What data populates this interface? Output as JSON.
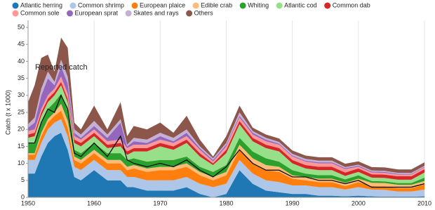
{
  "chart_data": {
    "type": "stacked-area",
    "y_label": "Catch (t x 1000)",
    "x": [
      1950,
      1951,
      1952,
      1953,
      1954,
      1955,
      1956,
      1957,
      1958,
      1960,
      1962,
      1964,
      1965,
      1966,
      1968,
      1970,
      1972,
      1974,
      1976,
      1978,
      1980,
      1982,
      1984,
      1986,
      1988,
      1990,
      1992,
      1994,
      1996,
      1998,
      2000,
      2002,
      2004,
      2006,
      2008,
      2010
    ],
    "xlim": [
      1950,
      2010
    ],
    "xticks": [
      1950,
      1960,
      1970,
      1980,
      1990,
      2000,
      2010
    ],
    "ylim": [
      0,
      50
    ],
    "yticks": [
      0,
      5,
      10,
      15,
      20,
      25,
      30,
      35,
      40,
      45,
      50
    ],
    "grid": "x",
    "series": [
      {
        "name": "Atlantic herring",
        "color": "#1f77b4",
        "values": [
          7,
          7,
          12,
          16,
          18,
          19,
          14,
          6,
          5,
          8,
          5,
          5,
          3,
          3,
          2,
          2,
          2,
          3,
          1,
          0,
          1,
          8,
          4,
          2,
          1.5,
          1,
          1,
          0.5,
          0.5,
          0.3,
          0.5,
          0.3,
          0.2,
          0.2,
          0.2,
          0.3
        ]
      },
      {
        "name": "Common shrimp",
        "color": "#aec7e8",
        "values": [
          4,
          4,
          4,
          4,
          4,
          4,
          4,
          3,
          3,
          3,
          3,
          3,
          3,
          3,
          3,
          3,
          3,
          3,
          3,
          3,
          3,
          3,
          3,
          3,
          3,
          2.5,
          2.5,
          2.5,
          2.5,
          2,
          2.5,
          2,
          2,
          1.5,
          1.5,
          2
        ]
      },
      {
        "name": "European plaice",
        "color": "#ff7f0e",
        "values": [
          1.5,
          1.5,
          2,
          2,
          2,
          2.5,
          2.5,
          2,
          2,
          2,
          2,
          2,
          2,
          2.5,
          2.5,
          3,
          3,
          3,
          2.5,
          2,
          2.5,
          3,
          3,
          3,
          3,
          2,
          1.5,
          1.5,
          1.5,
          1,
          1.5,
          1,
          1,
          1,
          1,
          1.5
        ]
      },
      {
        "name": "Edible crab",
        "color": "#ffbb78",
        "values": [
          0.5,
          0.5,
          1,
          1,
          1,
          2,
          2,
          1,
          1,
          1,
          1,
          1,
          1,
          1,
          1,
          1,
          1,
          1,
          1,
          1,
          1,
          1.5,
          1.5,
          1.5,
          1.5,
          1,
          1,
          1,
          1,
          1,
          1,
          1,
          1,
          1,
          1,
          1
        ]
      },
      {
        "name": "Whiting",
        "color": "#2ca02c",
        "values": [
          3,
          3,
          3,
          3,
          3,
          3,
          3,
          2,
          2,
          2,
          2,
          2,
          2,
          2,
          2,
          2,
          2,
          2,
          1.5,
          1.5,
          2,
          2,
          2,
          2,
          1.5,
          1.5,
          1,
          1,
          1,
          1,
          1,
          0.5,
          0.5,
          0.5,
          0.5,
          1
        ]
      },
      {
        "name": "Atlantic cod",
        "color": "#98df8a",
        "values": [
          1.5,
          2,
          2,
          2,
          2,
          2.5,
          2.5,
          2,
          2,
          2,
          1.5,
          2,
          1.5,
          2,
          3,
          4,
          3,
          4,
          3,
          2,
          3.5,
          4,
          3,
          3,
          3,
          2,
          1.5,
          1.5,
          1.5,
          1,
          1,
          1,
          1,
          1,
          1,
          1.5
        ]
      },
      {
        "name": "Common dab",
        "color": "#d62728",
        "values": [
          1,
          1,
          1,
          1,
          1,
          1,
          1,
          1,
          1,
          1,
          1,
          1,
          1,
          1,
          1,
          1,
          1,
          1,
          1,
          0.5,
          1,
          1,
          1,
          1,
          1,
          1,
          1,
          1,
          1,
          1,
          1,
          1,
          1,
          1,
          1,
          1
        ]
      },
      {
        "name": "Common sole",
        "color": "#ff9896",
        "values": [
          1,
          1,
          1,
          1,
          1,
          1.5,
          1.5,
          1,
          1,
          1,
          1,
          1,
          1,
          1,
          1,
          1,
          1,
          1,
          1,
          0.5,
          1,
          1,
          1,
          1,
          1,
          1,
          1,
          1,
          1,
          1,
          0.5,
          0.5,
          0.5,
          0.5,
          0.5,
          0.5
        ]
      },
      {
        "name": "European sprat",
        "color": "#9467bd",
        "values": [
          1,
          2,
          4,
          5,
          1,
          3,
          3,
          1,
          0.5,
          1,
          1,
          5,
          0.5,
          1,
          0.5,
          1,
          0.5,
          1,
          0.5,
          0.5,
          0.5,
          0.5,
          0.5,
          0.5,
          0.3,
          0.3,
          0.3,
          0.3,
          0.3,
          0.3,
          0.3,
          0.3,
          0.3,
          0.2,
          0.2,
          0.2
        ]
      },
      {
        "name": "Skates and rays",
        "color": "#c5b0d5",
        "values": [
          1,
          1.5,
          2,
          2,
          1,
          2,
          2,
          1,
          1,
          1.5,
          1,
          1,
          0.5,
          1,
          1,
          1,
          1,
          1,
          0.5,
          0.5,
          0.5,
          1,
          0.5,
          0.5,
          0.5,
          0.5,
          0.5,
          0.5,
          0.5,
          0.3,
          0.3,
          0.3,
          0.3,
          0.3,
          0.3,
          0.3
        ]
      },
      {
        "name": "Others",
        "color": "#8c564b",
        "values": [
          6.5,
          9.5,
          9,
          5,
          3,
          6.5,
          8.5,
          2,
          1.5,
          4.5,
          1.5,
          5,
          2.5,
          3.5,
          3,
          3,
          1.5,
          4,
          2,
          0.5,
          2,
          2,
          1,
          1,
          1,
          1,
          1,
          1,
          1,
          1,
          1,
          1,
          1,
          1,
          1,
          1
        ]
      }
    ],
    "reported_catch": {
      "name": "Reported catch",
      "color": "#000000",
      "values": [
        16,
        16,
        22,
        26,
        25,
        30,
        26,
        13,
        12,
        16,
        12,
        18,
        11,
        10,
        9,
        10,
        9,
        11,
        8,
        6,
        9,
        14,
        10,
        8,
        8,
        6,
        6,
        5,
        5,
        4,
        5,
        3,
        3,
        3,
        3,
        4
      ]
    }
  }
}
